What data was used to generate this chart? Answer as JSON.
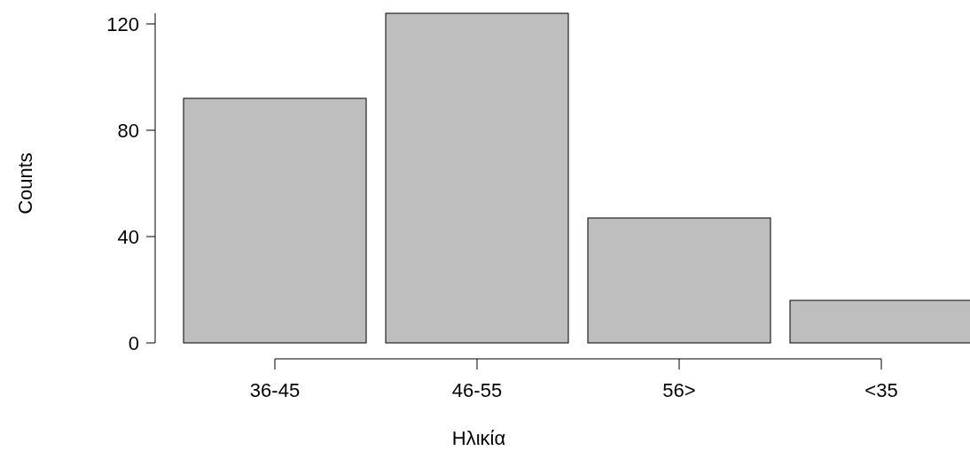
{
  "chart_data": {
    "type": "bar",
    "xlabel": "Ηλικία",
    "ylabel": "Counts",
    "categories": [
      "36-45",
      "46-55",
      "56>",
      "<35"
    ],
    "values": [
      92,
      124,
      47,
      16
    ],
    "color": "#bebebe",
    "ylim": [
      0,
      124
    ],
    "yticks": [
      0,
      40,
      80,
      120
    ],
    "grid": false
  }
}
